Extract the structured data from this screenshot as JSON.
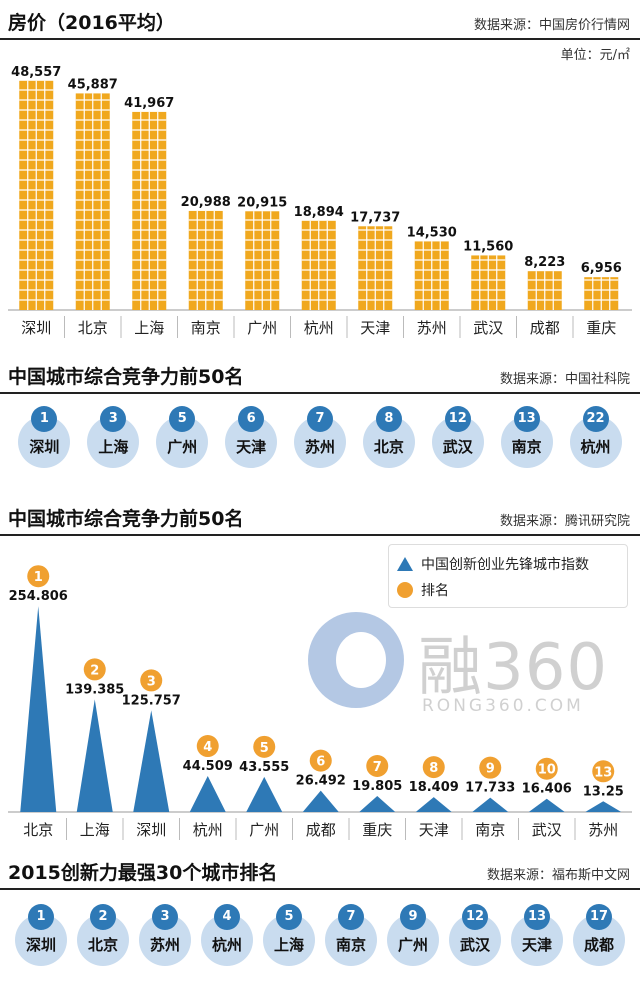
{
  "section1": {
    "title": "房价（2016平均）",
    "source": "数据来源：中国房价行情网",
    "unit": "单位：元/㎡"
  },
  "section2": {
    "title": "中国城市综合竞争力前50名",
    "source": "数据来源：中国社科院",
    "ranks": [
      {
        "rank": "1",
        "city": "深圳"
      },
      {
        "rank": "3",
        "city": "上海"
      },
      {
        "rank": "5",
        "city": "广州"
      },
      {
        "rank": "6",
        "city": "天津"
      },
      {
        "rank": "7",
        "city": "苏州"
      },
      {
        "rank": "8",
        "city": "北京"
      },
      {
        "rank": "12",
        "city": "武汉"
      },
      {
        "rank": "13",
        "city": "南京"
      },
      {
        "rank": "22",
        "city": "杭州"
      }
    ]
  },
  "section3": {
    "title": "中国城市综合竞争力前50名",
    "source": "数据来源：腾讯研究院",
    "legend_index": "中国创新创业先锋城市指数",
    "legend_rank": "排名"
  },
  "section4": {
    "title": "2015创新力最强30个城市排名",
    "source": "数据来源：福布斯中文网",
    "ranks": [
      {
        "rank": "1",
        "city": "深圳"
      },
      {
        "rank": "2",
        "city": "北京"
      },
      {
        "rank": "3",
        "city": "苏州"
      },
      {
        "rank": "4",
        "city": "杭州"
      },
      {
        "rank": "5",
        "city": "上海"
      },
      {
        "rank": "7",
        "city": "南京"
      },
      {
        "rank": "9",
        "city": "广州"
      },
      {
        "rank": "12",
        "city": "武汉"
      },
      {
        "rank": "13",
        "city": "天津"
      },
      {
        "rank": "17",
        "city": "成都"
      }
    ]
  },
  "watermark": {
    "brand": "融360",
    "domain": "RONG360.COM"
  },
  "colors": {
    "bar": "#f0a81e",
    "bar_grid": "#ffffff",
    "triangle": "#2e79b6",
    "rank_orange": "#f0a030",
    "badge_blue": "#2e79b6",
    "circle_light": "#c9dcef"
  },
  "chart_data": [
    {
      "type": "bar",
      "title": "房价（2016平均）",
      "ylabel": "单位：元/㎡",
      "categories": [
        "深圳",
        "北京",
        "上海",
        "南京",
        "广州",
        "杭州",
        "天津",
        "苏州",
        "武汉",
        "成都",
        "重庆"
      ],
      "values": [
        48557,
        45887,
        41967,
        20988,
        20915,
        18894,
        17737,
        14530,
        11560,
        8223,
        6956
      ],
      "labels": [
        "48,557",
        "45,887",
        "41,967",
        "20,988",
        "20,915",
        "18,894",
        "17,737",
        "14,530",
        "11,560",
        "8,223",
        "6,956"
      ],
      "ylim": [
        0,
        50000
      ]
    },
    {
      "type": "bar",
      "title": "中国城市综合竞争力前50名",
      "categories": [
        "北京",
        "上海",
        "深圳",
        "杭州",
        "广州",
        "成都",
        "重庆",
        "天津",
        "南京",
        "武汉",
        "苏州"
      ],
      "series": [
        {
          "name": "中国创新创业先锋城市指数",
          "values": [
            254.806,
            139.385,
            125.757,
            44.509,
            43.555,
            26.492,
            19.805,
            18.409,
            17.733,
            16.406,
            13.25
          ]
        },
        {
          "name": "排名",
          "values": [
            1,
            2,
            3,
            4,
            5,
            6,
            7,
            8,
            9,
            10,
            13
          ]
        }
      ],
      "labels": [
        "254.806",
        "139.385",
        "125.757",
        "44.509",
        "43.555",
        "26.492",
        "19.805",
        "18.409",
        "17.733",
        "16.406",
        "13.25"
      ],
      "ylim": [
        0,
        260
      ]
    }
  ]
}
